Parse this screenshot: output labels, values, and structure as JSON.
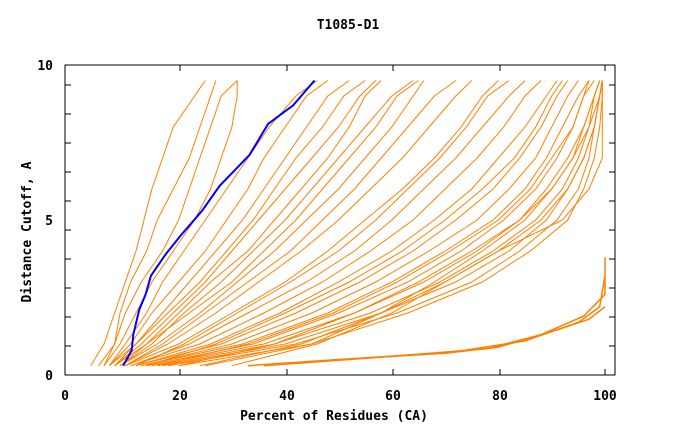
{
  "chart_data": {
    "type": "line",
    "title": "T1085-D1",
    "xlabel": "Percent of Residues (CA)",
    "ylabel": "Distance Cutoff, A",
    "xlim": [
      0,
      100
    ],
    "ylim": [
      0,
      10
    ],
    "x_ticks": [
      "0",
      "20",
      "40",
      "60",
      "80",
      "100"
    ],
    "y_ticks": [
      "0",
      "5",
      "10"
    ],
    "grid": false,
    "colors": {
      "models": "#ff8000",
      "highlight": "#0000ff",
      "axes": "#000000"
    },
    "highlight_series": {
      "points": [
        [
          9.6,
          0.3
        ],
        [
          11.2,
          0.8
        ],
        [
          11.5,
          1.3
        ],
        [
          12.6,
          2.1
        ],
        [
          13.8,
          2.6
        ],
        [
          14.8,
          3.2
        ],
        [
          17.6,
          3.9
        ],
        [
          20.4,
          4.5
        ],
        [
          24.4,
          5.3
        ],
        [
          27.7,
          6.1
        ],
        [
          33.3,
          7.1
        ],
        [
          36.8,
          8.1
        ],
        [
          41.5,
          8.7
        ],
        [
          45.5,
          9.5
        ]
      ]
    },
    "model_levels_y": [
      0.3,
      1,
      2,
      3,
      4,
      5,
      6,
      7,
      8,
      9,
      9.5
    ],
    "model_series_x": [
      [
        3.5,
        6,
        8,
        10,
        12,
        13.5,
        15,
        17,
        19,
        23,
        25
      ],
      [
        5,
        8,
        9,
        11,
        14,
        16,
        19,
        22,
        24,
        26,
        27
      ],
      [
        6,
        8,
        10,
        13,
        17,
        20,
        22,
        24,
        26,
        28,
        31
      ],
      [
        6,
        9,
        12,
        15,
        19,
        23,
        26,
        28,
        30,
        31,
        31
      ],
      [
        7,
        10,
        14,
        17,
        21,
        25,
        29,
        33,
        37,
        42,
        46
      ],
      [
        7,
        11,
        15,
        20,
        25,
        29,
        33,
        36,
        40,
        44,
        48
      ],
      [
        7,
        12,
        18,
        24,
        29,
        34,
        38,
        42,
        47,
        51,
        55
      ],
      [
        8,
        12,
        17,
        22,
        27,
        32,
        36,
        40,
        44,
        48,
        52
      ],
      [
        8,
        13,
        19,
        25,
        30,
        35,
        40,
        45,
        50,
        54,
        57
      ],
      [
        8,
        14,
        20,
        26,
        33,
        38,
        43,
        48,
        52,
        55,
        58
      ],
      [
        9,
        14,
        22,
        30,
        36,
        42,
        47,
        52,
        57,
        61,
        65
      ],
      [
        9,
        15,
        21,
        28,
        34,
        40,
        45,
        50,
        55,
        60,
        64
      ],
      [
        9,
        16,
        24,
        31,
        38,
        44,
        50,
        55,
        60,
        64,
        66
      ],
      [
        10,
        17,
        25,
        33,
        41,
        47,
        53,
        58,
        63,
        68,
        72
      ],
      [
        10,
        18,
        27,
        35,
        43,
        50,
        56,
        62,
        67,
        72,
        75
      ],
      [
        10,
        20,
        30,
        40,
        48,
        55,
        62,
        68,
        73,
        77,
        80
      ],
      [
        11,
        22,
        33,
        44,
        53,
        60,
        66,
        72,
        77,
        82,
        85
      ],
      [
        12,
        21,
        31,
        41,
        50,
        57,
        63,
        69,
        74,
        78,
        82
      ],
      [
        11,
        24,
        36,
        47,
        56,
        64,
        70,
        76,
        81,
        85,
        88
      ],
      [
        12,
        26,
        39,
        50,
        60,
        68,
        75,
        80,
        85,
        89,
        91
      ],
      [
        12,
        28,
        42,
        54,
        64,
        72,
        79,
        84,
        88,
        91,
        93
      ],
      [
        14,
        27,
        40,
        52,
        62,
        70,
        77,
        83,
        87,
        90,
        92
      ],
      [
        13,
        30,
        45,
        57,
        67,
        76,
        82,
        87,
        90,
        93,
        95
      ],
      [
        13,
        32,
        48,
        60,
        70,
        79,
        85,
        89,
        92,
        95,
        97
      ],
      [
        14,
        34,
        50,
        63,
        73,
        81,
        87,
        91,
        94,
        96,
        98
      ],
      [
        16,
        33,
        49,
        61,
        71,
        80,
        86,
        90,
        94,
        96,
        97
      ],
      [
        15,
        36,
        53,
        66,
        76,
        84,
        89,
        93,
        96,
        98,
        99
      ],
      [
        16,
        38,
        56,
        69,
        79,
        87,
        92,
        95,
        97,
        98,
        99
      ],
      [
        20,
        38,
        53,
        65,
        75,
        84,
        90,
        94,
        96,
        98,
        99
      ],
      [
        17,
        40,
        58,
        72,
        82,
        89,
        93,
        96,
        98,
        99,
        99.5
      ],
      [
        18,
        42,
        61,
        75,
        84,
        91,
        95,
        97,
        98,
        99,
        99.5
      ],
      [
        24,
        43,
        58,
        70,
        80,
        88,
        93,
        96,
        98,
        99,
        99.5
      ],
      [
        20,
        45,
        63,
        77,
        86,
        93,
        96,
        98,
        99,
        99.5,
        99.5
      ],
      [
        25,
        45,
        58,
        68,
        77,
        85,
        90,
        94,
        97,
        99,
        99.5
      ],
      [
        30,
        46,
        60,
        70,
        80,
        92,
        97,
        99.5,
        99.5,
        99.5,
        99.5
      ]
    ],
    "low_series": [
      [
        [
          33,
          0.3
        ],
        [
          50,
          0.5
        ],
        [
          70,
          0.7
        ],
        [
          80,
          0.9
        ],
        [
          90,
          1.4
        ],
        [
          97,
          1.8
        ],
        [
          100,
          2.2
        ]
      ],
      [
        [
          36,
          0.3
        ],
        [
          55,
          0.55
        ],
        [
          72,
          0.75
        ],
        [
          85,
          1.1
        ],
        [
          95,
          1.7
        ],
        [
          99,
          2.2
        ],
        [
          100,
          3.2
        ]
      ],
      [
        [
          40,
          0.35
        ],
        [
          60,
          0.6
        ],
        [
          78,
          0.85
        ],
        [
          88,
          1.3
        ],
        [
          96,
          1.9
        ],
        [
          100,
          2.6
        ],
        [
          100,
          3.8
        ]
      ]
    ]
  }
}
